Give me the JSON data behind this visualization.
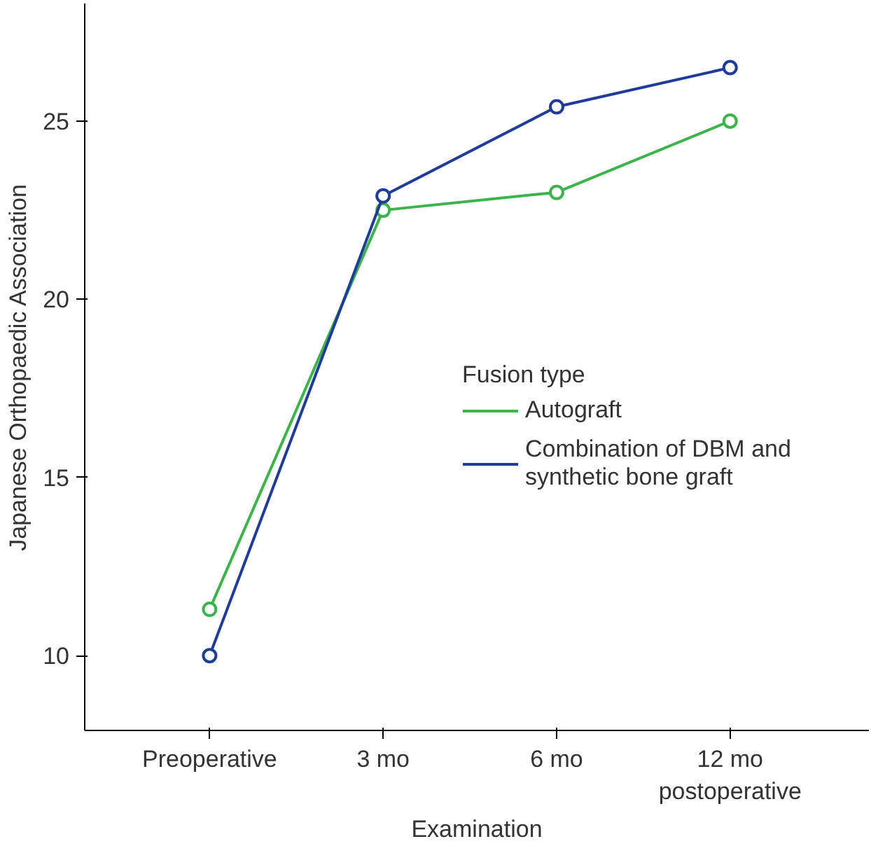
{
  "chart_data": {
    "type": "line",
    "xlabel": "Examination",
    "ylabel": "Japanese Orthopaedic Association",
    "legend_title": "Fusion type",
    "categories": [
      "Preoperative",
      "3 mo",
      "6 mo",
      "12 mo\npostoperative"
    ],
    "series": [
      {
        "name": "Autograft",
        "color": "#3cb44b",
        "values": [
          11.3,
          22.5,
          23.0,
          25.0
        ]
      },
      {
        "name": "Combination of DBM and\nsynthetic bone graft",
        "color": "#1f3c9a",
        "values": [
          10.0,
          22.9,
          25.4,
          26.5
        ]
      }
    ],
    "ylim": [
      7.9,
      28.3
    ],
    "yticks": [
      10,
      15,
      20,
      25
    ],
    "grid": false,
    "legend": "right",
    "marker": "circle",
    "line_style": "solid"
  }
}
